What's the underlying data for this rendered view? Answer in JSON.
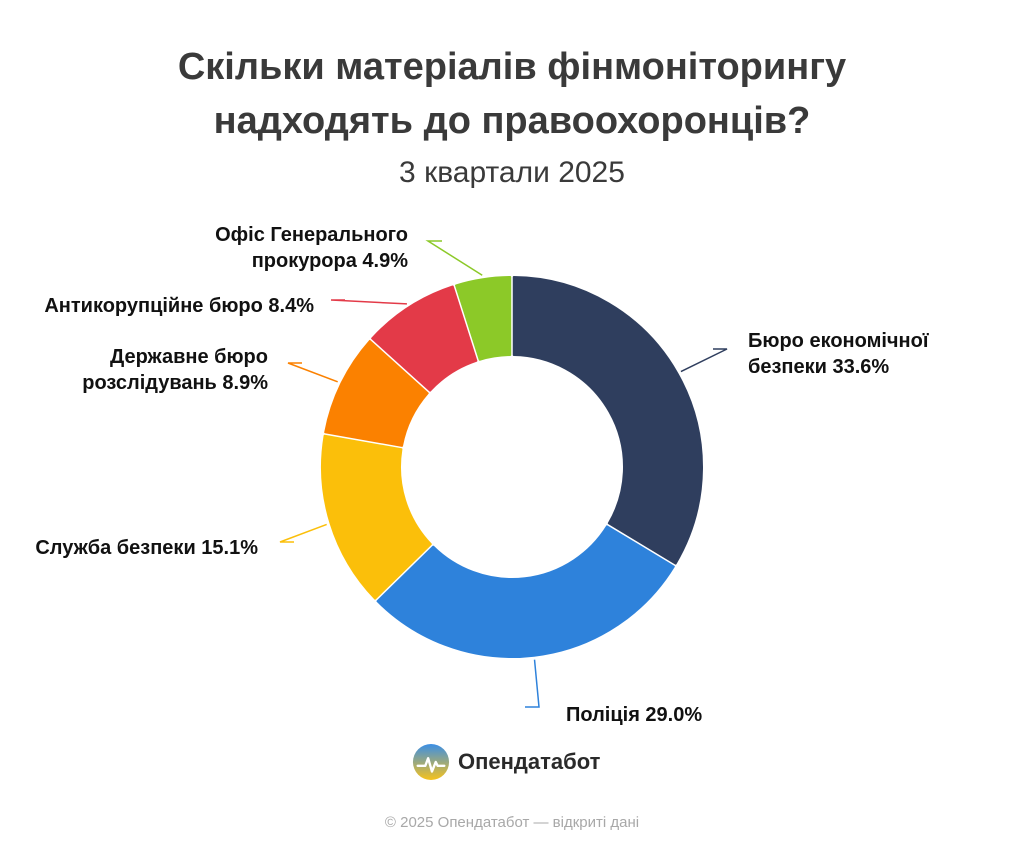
{
  "title_lines": [
    "Скільки матеріалів фінмоніторингу",
    "надходять до правоохоронців?"
  ],
  "subtitle": "3 квартали 2025",
  "chart_data": {
    "type": "pie",
    "donut": true,
    "title": "Скільки матеріалів фінмоніторингу надходять до правоохоронців?",
    "subtitle": "3 квартали 2025",
    "unit": "%",
    "slices": [
      {
        "name": "Бюро економічної безпеки",
        "value": 33.6,
        "color": "#2f3e5e",
        "label_lines": [
          "Бюро економічної",
          "безпеки 33.6%"
        ]
      },
      {
        "name": "Поліція",
        "value": 29.0,
        "color": "#2e82db",
        "label_lines": [
          "Поліція 29.0%"
        ]
      },
      {
        "name": "Служба безпеки",
        "value": 15.1,
        "color": "#fbbf0a",
        "label_lines": [
          "Служба безпеки 15.1%"
        ]
      },
      {
        "name": "Державне бюро розслідувань",
        "value": 8.9,
        "color": "#fb8100",
        "label_lines": [
          "Державне бюро",
          "розслідувань 8.9%"
        ]
      },
      {
        "name": "Антикорупційне бюро",
        "value": 8.4,
        "color": "#e33a48",
        "label_lines": [
          "Антикорупційне бюро 8.4%"
        ]
      },
      {
        "name": "Офіс Генерального прокурора",
        "value": 4.9,
        "color": "#8cc928",
        "label_lines": [
          "Офіс Генерального",
          "прокурора 4.9%"
        ]
      }
    ]
  },
  "brand": {
    "name": "Опендатабот",
    "logo_icon": "opendatabot-logo-icon"
  },
  "footer": "© 2025 Опендатабот — відкриті дані"
}
